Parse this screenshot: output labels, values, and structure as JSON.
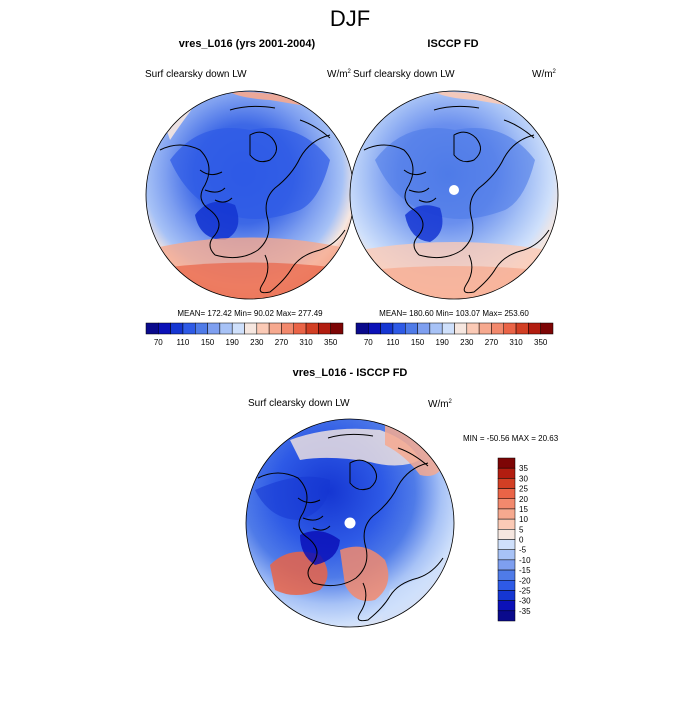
{
  "title": "DJF",
  "panels": [
    {
      "title": "vres_L016 (yrs 2001-2004)",
      "variable": "Surf clearsky down LW",
      "units_base": "W/m",
      "units_exp": "2",
      "stats": "MEAN= 172.42  Min=  90.02  Max= 277.49"
    },
    {
      "title": "ISCCP FD",
      "variable": "Surf clearsky down LW",
      "units_base": "W/m",
      "units_exp": "2",
      "stats": "MEAN= 180.60  Min= 103.07   Max= 253.60"
    },
    {
      "title": "vres_L016 - ISCCP FD",
      "variable": "Surf clearsky down LW",
      "units_base": "W/m",
      "units_exp": "2",
      "stats": "MIN = -50.56 MAX =  20.63"
    }
  ],
  "abs_colorbar": {
    "colors": [
      "#0a0a8c",
      "#0b11b8",
      "#1536d2",
      "#2e5ae6",
      "#4f7be8",
      "#7e9ff0",
      "#a7c2f6",
      "#cfe0fb",
      "#f6e7e0",
      "#fbcab6",
      "#f6a98f",
      "#f2896d",
      "#ea6447",
      "#d23f24",
      "#b21d10",
      "#7d0505"
    ],
    "tick_labels": [
      "70",
      "110",
      "150",
      "190",
      "230",
      "270",
      "310",
      "350"
    ]
  },
  "diff_colorbar": {
    "colors": [
      "#7d0505",
      "#b21d10",
      "#d23f24",
      "#ea6447",
      "#f2896d",
      "#f6a98f",
      "#fbcab6",
      "#f6e7e0",
      "#cfe0fb",
      "#a7c2f6",
      "#7e9ff0",
      "#4f7be8",
      "#2e5ae6",
      "#1536d2",
      "#0b11b8",
      "#0a0a8c"
    ],
    "tick_labels": [
      "35",
      "30",
      "25",
      "20",
      "15",
      "10",
      "5",
      "0",
      "-5",
      "-10",
      "-15",
      "-20",
      "-25",
      "-30",
      "-35"
    ]
  }
}
